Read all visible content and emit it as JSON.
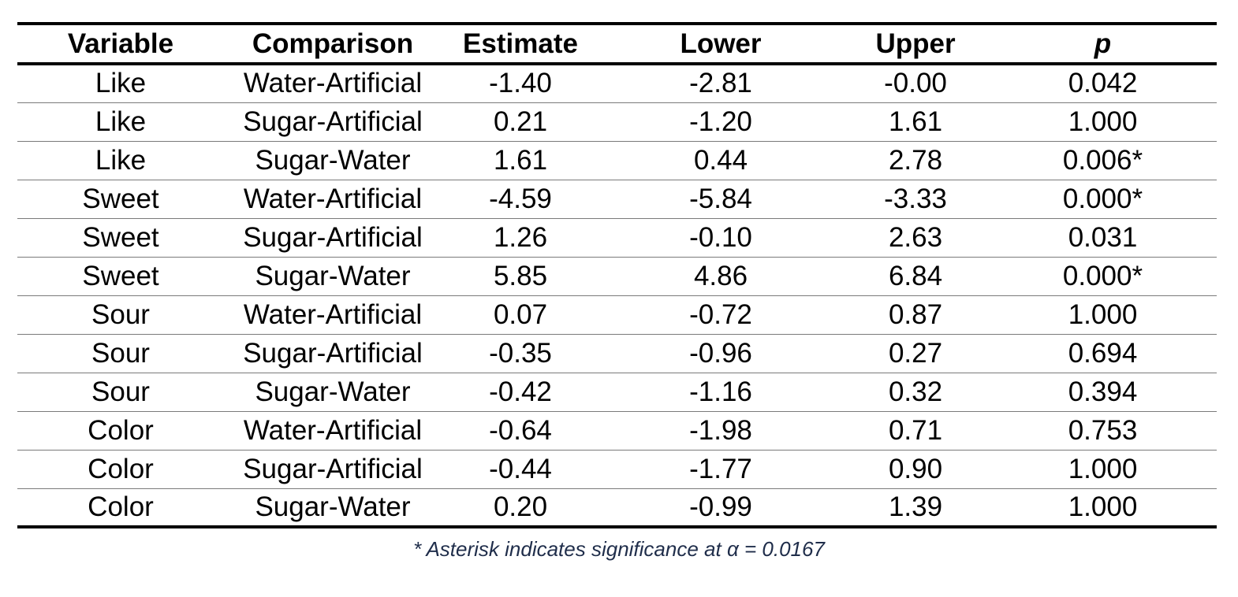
{
  "table": {
    "headers": [
      "Variable",
      "Comparison",
      "Estimate",
      "Lower",
      "Upper",
      "p"
    ],
    "rows": [
      [
        "Like",
        "Water-Artificial",
        "-1.40",
        "-2.81",
        "-0.00",
        "0.042"
      ],
      [
        "Like",
        "Sugar-Artificial",
        "0.21",
        "-1.20",
        "1.61",
        "1.000"
      ],
      [
        "Like",
        "Sugar-Water",
        "1.61",
        "0.44",
        "2.78",
        "0.006*"
      ],
      [
        "Sweet",
        "Water-Artificial",
        "-4.59",
        "-5.84",
        "-3.33",
        "0.000*"
      ],
      [
        "Sweet",
        "Sugar-Artificial",
        "1.26",
        "-0.10",
        "2.63",
        "0.031"
      ],
      [
        "Sweet",
        "Sugar-Water",
        "5.85",
        "4.86",
        "6.84",
        "0.000*"
      ],
      [
        "Sour",
        "Water-Artificial",
        "0.07",
        "-0.72",
        "0.87",
        "1.000"
      ],
      [
        "Sour",
        "Sugar-Artificial",
        "-0.35",
        "-0.96",
        "0.27",
        "0.694"
      ],
      [
        "Sour",
        "Sugar-Water",
        "-0.42",
        "-1.16",
        "0.32",
        "0.394"
      ],
      [
        "Color",
        "Water-Artificial",
        "-0.64",
        "-1.98",
        "0.71",
        "0.753"
      ],
      [
        "Color",
        "Sugar-Artificial",
        "-0.44",
        "-1.77",
        "0.90",
        "1.000"
      ],
      [
        "Color",
        "Sugar-Water",
        "0.20",
        "-0.99",
        "1.39",
        "1.000"
      ]
    ]
  },
  "footnote": "* Asterisk indicates significance at α = 0.0167",
  "colors": {
    "text": "#000000",
    "footnote_text": "#1f2d4a",
    "row_divider": "#7a7a7a"
  }
}
